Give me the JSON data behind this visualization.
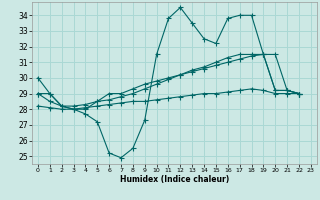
{
  "xlabel": "Humidex (Indice chaleur)",
  "bg_color": "#cce8e4",
  "grid_color": "#aad8d4",
  "line_color": "#006666",
  "xlim": [
    -0.5,
    23.5
  ],
  "ylim": [
    24.5,
    34.85
  ],
  "xticks": [
    0,
    1,
    2,
    3,
    4,
    5,
    6,
    7,
    8,
    9,
    10,
    11,
    12,
    13,
    14,
    15,
    16,
    17,
    18,
    19,
    20,
    21,
    22,
    23
  ],
  "yticks": [
    25,
    26,
    27,
    28,
    29,
    30,
    31,
    32,
    33,
    34
  ],
  "s1_x": [
    0,
    1,
    2,
    3,
    4,
    5,
    6,
    7,
    8,
    9,
    10,
    11,
    12,
    13,
    14,
    15,
    16,
    17,
    18,
    19,
    20,
    21,
    22
  ],
  "s1_y": [
    30.0,
    29.0,
    28.2,
    28.0,
    27.7,
    27.2,
    25.2,
    24.9,
    25.5,
    27.3,
    31.5,
    33.8,
    34.5,
    33.5,
    32.5,
    32.2,
    33.8,
    34.0,
    34.0,
    31.5,
    29.2,
    29.2,
    29.0
  ],
  "s2_x": [
    0,
    1,
    2,
    3,
    4,
    5,
    6,
    7,
    8,
    9,
    10,
    11,
    12,
    13,
    14,
    15,
    16,
    17,
    18,
    19,
    20,
    21,
    22
  ],
  "s2_y": [
    29.0,
    28.5,
    28.2,
    28.2,
    28.3,
    28.5,
    28.6,
    28.8,
    29.0,
    29.3,
    29.6,
    29.9,
    30.2,
    30.4,
    30.6,
    30.8,
    31.0,
    31.2,
    31.4,
    31.5,
    31.5,
    29.2,
    29.0
  ],
  "s3_x": [
    0,
    1,
    2,
    3,
    4,
    5,
    6,
    7,
    8,
    9,
    10,
    11,
    12,
    13,
    14,
    15,
    16,
    17,
    18,
    19,
    20,
    21,
    22
  ],
  "s3_y": [
    28.2,
    28.1,
    28.0,
    28.0,
    28.1,
    28.2,
    28.3,
    28.4,
    28.5,
    28.5,
    28.6,
    28.7,
    28.8,
    28.9,
    29.0,
    29.0,
    29.1,
    29.2,
    29.3,
    29.2,
    29.0,
    29.0,
    29.0
  ],
  "s4_x": [
    0,
    1,
    2,
    3,
    4,
    5,
    6,
    7,
    8,
    9,
    10,
    11,
    12,
    13,
    14,
    15,
    16,
    17,
    18,
    19,
    20,
    21,
    22
  ],
  "s4_y": [
    29.0,
    29.0,
    28.2,
    28.0,
    28.0,
    28.5,
    29.0,
    29.0,
    29.3,
    29.6,
    29.8,
    30.0,
    30.2,
    30.5,
    30.7,
    31.0,
    31.3,
    31.5,
    31.5,
    31.5,
    29.2,
    29.2,
    29.0
  ]
}
